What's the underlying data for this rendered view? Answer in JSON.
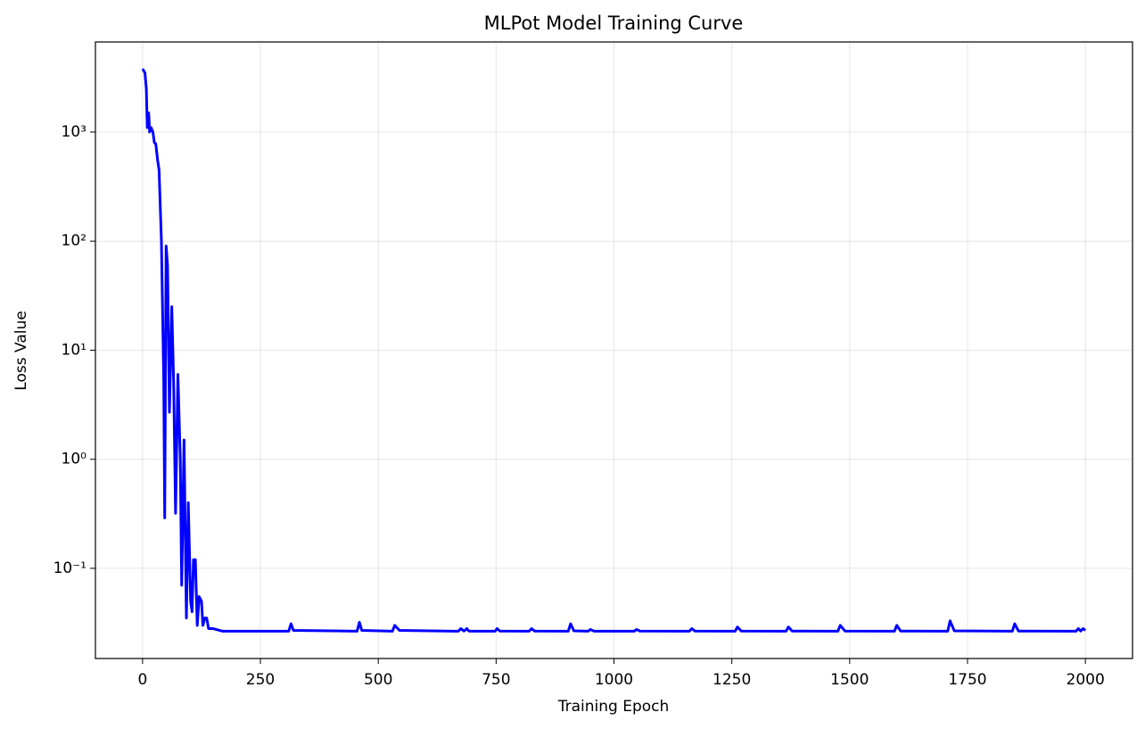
{
  "chart_data": {
    "type": "line",
    "title": "MLPot Model Training Curve",
    "xlabel": "Training Epoch",
    "ylabel": "Loss Value",
    "yscale": "log",
    "grid": true,
    "xlim": [
      -100,
      2100
    ],
    "ylim": [
      0.0149,
      6700
    ],
    "xticks": [
      0,
      250,
      500,
      750,
      1000,
      1250,
      1500,
      1750,
      2000
    ],
    "yticks": [
      {
        "value": 0.1,
        "label": "10⁻¹"
      },
      {
        "value": 1,
        "label": "10⁰"
      },
      {
        "value": 10,
        "label": "10¹"
      },
      {
        "value": 100,
        "label": "10²"
      },
      {
        "value": 1000,
        "label": "10³"
      }
    ],
    "series": [
      {
        "color": "#0000ff",
        "x": [
          0,
          5,
          8,
          10,
          13,
          15,
          18,
          22,
          25,
          28,
          32,
          35,
          40,
          45,
          47,
          50,
          53,
          57,
          62,
          66,
          70,
          75,
          80,
          83,
          88,
          93,
          97,
          102,
          105,
          108,
          112,
          116,
          120,
          125,
          128,
          132,
          136,
          140,
          150,
          170,
          310,
          315,
          320,
          455,
          460,
          465,
          530,
          535,
          545,
          670,
          675,
          682,
          688,
          692,
          700,
          748,
          752,
          758,
          820,
          825,
          832,
          903,
          908,
          915,
          945,
          950,
          958,
          1043,
          1048,
          1055,
          1160,
          1165,
          1172,
          1257,
          1262,
          1270,
          1365,
          1370,
          1378,
          1475,
          1480,
          1490,
          1595,
          1600,
          1608,
          1708,
          1713,
          1722,
          1845,
          1850,
          1858,
          1980,
          1985,
          1990,
          1995,
          2000
        ],
        "values": [
          3800,
          3500,
          2500,
          1100,
          1500,
          1000,
          1100,
          1000,
          800,
          780,
          550,
          450,
          100,
          5,
          0.29,
          90,
          60,
          2.7,
          25,
          5,
          0.32,
          6,
          1,
          0.07,
          1.5,
          0.035,
          0.4,
          0.05,
          0.04,
          0.12,
          0.12,
          0.03,
          0.055,
          0.05,
          0.03,
          0.035,
          0.035,
          0.028,
          0.028,
          0.0265,
          0.0265,
          0.031,
          0.027,
          0.0265,
          0.032,
          0.027,
          0.0265,
          0.03,
          0.027,
          0.0265,
          0.028,
          0.0266,
          0.028,
          0.0266,
          0.0265,
          0.0265,
          0.028,
          0.0266,
          0.0265,
          0.028,
          0.0266,
          0.0265,
          0.031,
          0.0267,
          0.0265,
          0.0275,
          0.0265,
          0.0265,
          0.0275,
          0.0266,
          0.0265,
          0.028,
          0.0266,
          0.0265,
          0.029,
          0.0266,
          0.0265,
          0.029,
          0.0266,
          0.0265,
          0.03,
          0.0266,
          0.0265,
          0.03,
          0.0266,
          0.0265,
          0.033,
          0.0267,
          0.0265,
          0.031,
          0.0266,
          0.0265,
          0.028,
          0.0266,
          0.028,
          0.027
        ]
      }
    ]
  }
}
